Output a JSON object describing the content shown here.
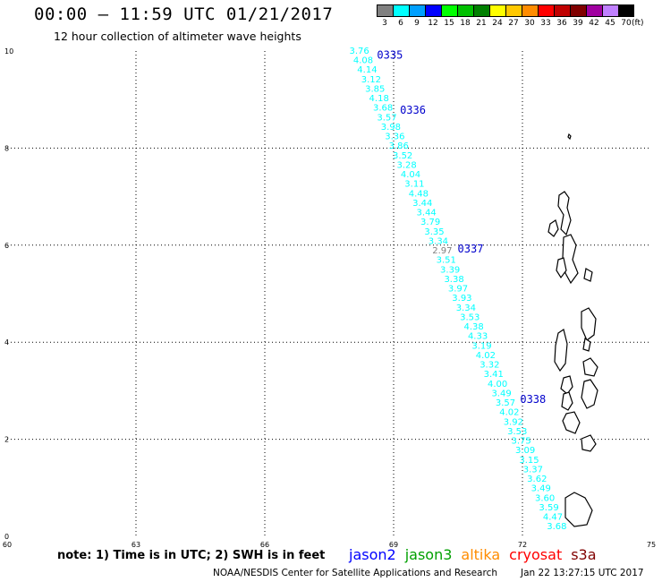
{
  "header": {
    "title": "00:00 – 11:59 UTC 01/21/2017",
    "subtitle": "12 hour collection of altimeter wave heights"
  },
  "color_scale": {
    "unit": "(ft)",
    "bins": [
      {
        "label": "3",
        "color": "#808080"
      },
      {
        "label": "6",
        "color": "#00ffff"
      },
      {
        "label": "9",
        "color": "#00a0ff"
      },
      {
        "label": "12",
        "color": "#0000ff"
      },
      {
        "label": "15",
        "color": "#00ff00"
      },
      {
        "label": "18",
        "color": "#00c000"
      },
      {
        "label": "21",
        "color": "#008000"
      },
      {
        "label": "24",
        "color": "#ffff00"
      },
      {
        "label": "27",
        "color": "#ffc800"
      },
      {
        "label": "30",
        "color": "#ff8c00"
      },
      {
        "label": "33",
        "color": "#ff0000"
      },
      {
        "label": "36",
        "color": "#c00000"
      },
      {
        "label": "39",
        "color": "#800000"
      },
      {
        "label": "42",
        "color": "#a000a0"
      },
      {
        "label": "45",
        "color": "#c080ff"
      },
      {
        "label": "70",
        "color": "#000000"
      }
    ]
  },
  "map": {
    "lon_range": [
      60,
      75
    ],
    "lat_range": [
      0,
      10
    ],
    "lon_ticks": [
      "60",
      "63",
      "66",
      "69",
      "72",
      "75"
    ],
    "lat_ticks": [
      "0",
      "2",
      "4",
      "6",
      "8",
      "10"
    ],
    "track_color": "#00ffff",
    "low_color": "#808080",
    "time_color": "#0000cc",
    "track_start": [
      68.2,
      10.0
    ],
    "track_end": [
      72.8,
      0.2
    ],
    "swh_values": [
      "3.76",
      "4.08",
      "4.14",
      "3.12",
      "3.85",
      "4.18",
      "3.68",
      "3.57",
      "3.98",
      "3.36",
      "3.86",
      "3.52",
      "3.28",
      "4.04",
      "3.11",
      "4.48",
      "3.44",
      "3.44",
      "3.79",
      "3.35",
      "3.34",
      "2.97",
      "3.51",
      "3.39",
      "3.38",
      "3.97",
      "3.93",
      "3.34",
      "3.53",
      "4.38",
      "4.33",
      "3.19",
      "4.02",
      "3.32",
      "3.41",
      "4.00",
      "3.49",
      "3.57",
      "4.02",
      "3.92",
      "3.53",
      "3.75",
      "3.09",
      "3.15",
      "3.37",
      "3.62",
      "3.49",
      "3.60",
      "3.59",
      "4.47",
      "3.68"
    ],
    "time_labels": [
      {
        "text": "0335",
        "lat": 9.92
      },
      {
        "text": "0336",
        "lat": 8.78
      },
      {
        "text": "0337",
        "lat": 5.92
      },
      {
        "text": "0338",
        "lat": 2.82
      }
    ]
  },
  "note": "note: 1) Time is in UTC; 2) SWH is in feet",
  "satellites": [
    {
      "name": "jason2",
      "color": "#0000ff"
    },
    {
      "name": "jason3",
      "color": "#00a000"
    },
    {
      "name": "altika",
      "color": "#ff8c00"
    },
    {
      "name": "cryosat",
      "color": "#ff0000"
    },
    {
      "name": "s3a",
      "color": "#800000"
    }
  ],
  "footer": {
    "org": "NOAA/NESDIS Center for Satellite Applications and Research",
    "timestamp": "Jan 22 13:27:15 UTC 2017"
  }
}
